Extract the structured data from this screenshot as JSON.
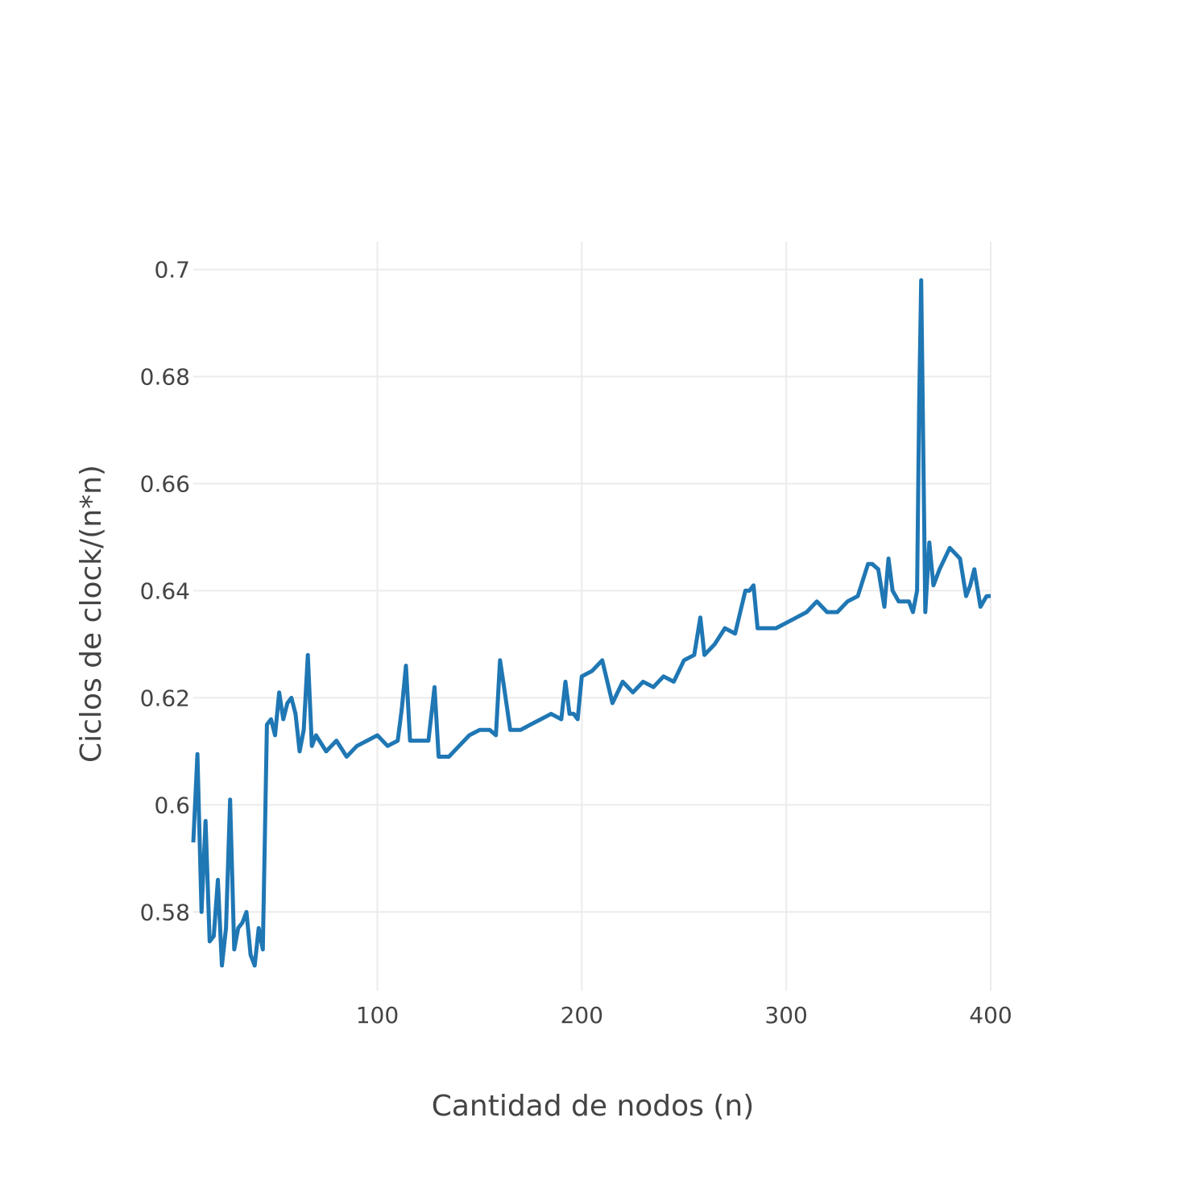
{
  "chart_data": {
    "type": "line",
    "xlabel": "Cantidad de nodos (n)",
    "ylabel": "Ciclos de clock/(n*n)",
    "xlim": [
      10,
      400
    ],
    "ylim": [
      0.5653,
      0.7052
    ],
    "xticks": [
      100,
      200,
      300,
      400
    ],
    "yticks": [
      0.58,
      0.6,
      0.62,
      0.64,
      0.66,
      0.68,
      0.7
    ],
    "ytick_labels": [
      "0.58",
      "0.6",
      "0.62",
      "0.64",
      "0.66",
      "0.68",
      "0.7"
    ],
    "grid": true,
    "line_color": "#1f77b4",
    "series": [
      {
        "x": [
          10,
          12,
          14,
          16,
          18,
          20,
          22,
          24,
          26,
          28,
          30,
          32,
          34,
          36,
          38,
          40,
          42,
          44,
          46,
          48,
          50,
          52,
          54,
          56,
          58,
          60,
          62,
          64,
          66,
          68,
          70,
          75,
          80,
          85,
          90,
          95,
          100,
          105,
          110,
          112,
          114,
          116,
          118,
          120,
          125,
          128,
          130,
          135,
          140,
          145,
          150,
          155,
          158,
          160,
          162,
          165,
          170,
          175,
          180,
          185,
          190,
          192,
          194,
          196,
          198,
          200,
          205,
          210,
          215,
          220,
          225,
          230,
          235,
          240,
          245,
          250,
          255,
          258,
          260,
          265,
          270,
          275,
          280,
          282,
          284,
          286,
          290,
          295,
          300,
          305,
          310,
          315,
          320,
          325,
          330,
          335,
          340,
          342,
          345,
          348,
          350,
          352,
          355,
          360,
          362,
          364,
          365,
          366,
          368,
          370,
          372,
          375,
          380,
          385,
          388,
          390,
          392,
          395,
          398,
          400
        ],
        "y": [
          0.593,
          0.6095,
          0.58,
          0.597,
          0.5745,
          0.5755,
          0.586,
          0.57,
          0.577,
          0.601,
          0.573,
          0.577,
          0.578,
          0.58,
          0.572,
          0.57,
          0.577,
          0.573,
          0.615,
          0.616,
          0.613,
          0.621,
          0.616,
          0.619,
          0.62,
          0.617,
          0.61,
          0.614,
          0.628,
          0.611,
          0.613,
          0.61,
          0.612,
          0.609,
          0.611,
          0.612,
          0.613,
          0.611,
          0.612,
          0.618,
          0.626,
          0.612,
          0.612,
          0.612,
          0.612,
          0.622,
          0.609,
          0.609,
          0.611,
          0.613,
          0.614,
          0.614,
          0.613,
          0.627,
          0.622,
          0.614,
          0.614,
          0.615,
          0.616,
          0.617,
          0.616,
          0.623,
          0.617,
          0.617,
          0.616,
          0.624,
          0.625,
          0.627,
          0.619,
          0.623,
          0.621,
          0.623,
          0.622,
          0.624,
          0.623,
          0.627,
          0.628,
          0.635,
          0.628,
          0.63,
          0.633,
          0.632,
          0.64,
          0.64,
          0.641,
          0.633,
          0.633,
          0.633,
          0.634,
          0.635,
          0.636,
          0.638,
          0.636,
          0.636,
          0.638,
          0.639,
          0.645,
          0.645,
          0.644,
          0.637,
          0.646,
          0.64,
          0.638,
          0.638,
          0.636,
          0.64,
          0.675,
          0.698,
          0.636,
          0.649,
          0.641,
          0.644,
          0.648,
          0.646,
          0.639,
          0.641,
          0.644,
          0.637,
          0.639,
          0.639
        ]
      }
    ]
  }
}
